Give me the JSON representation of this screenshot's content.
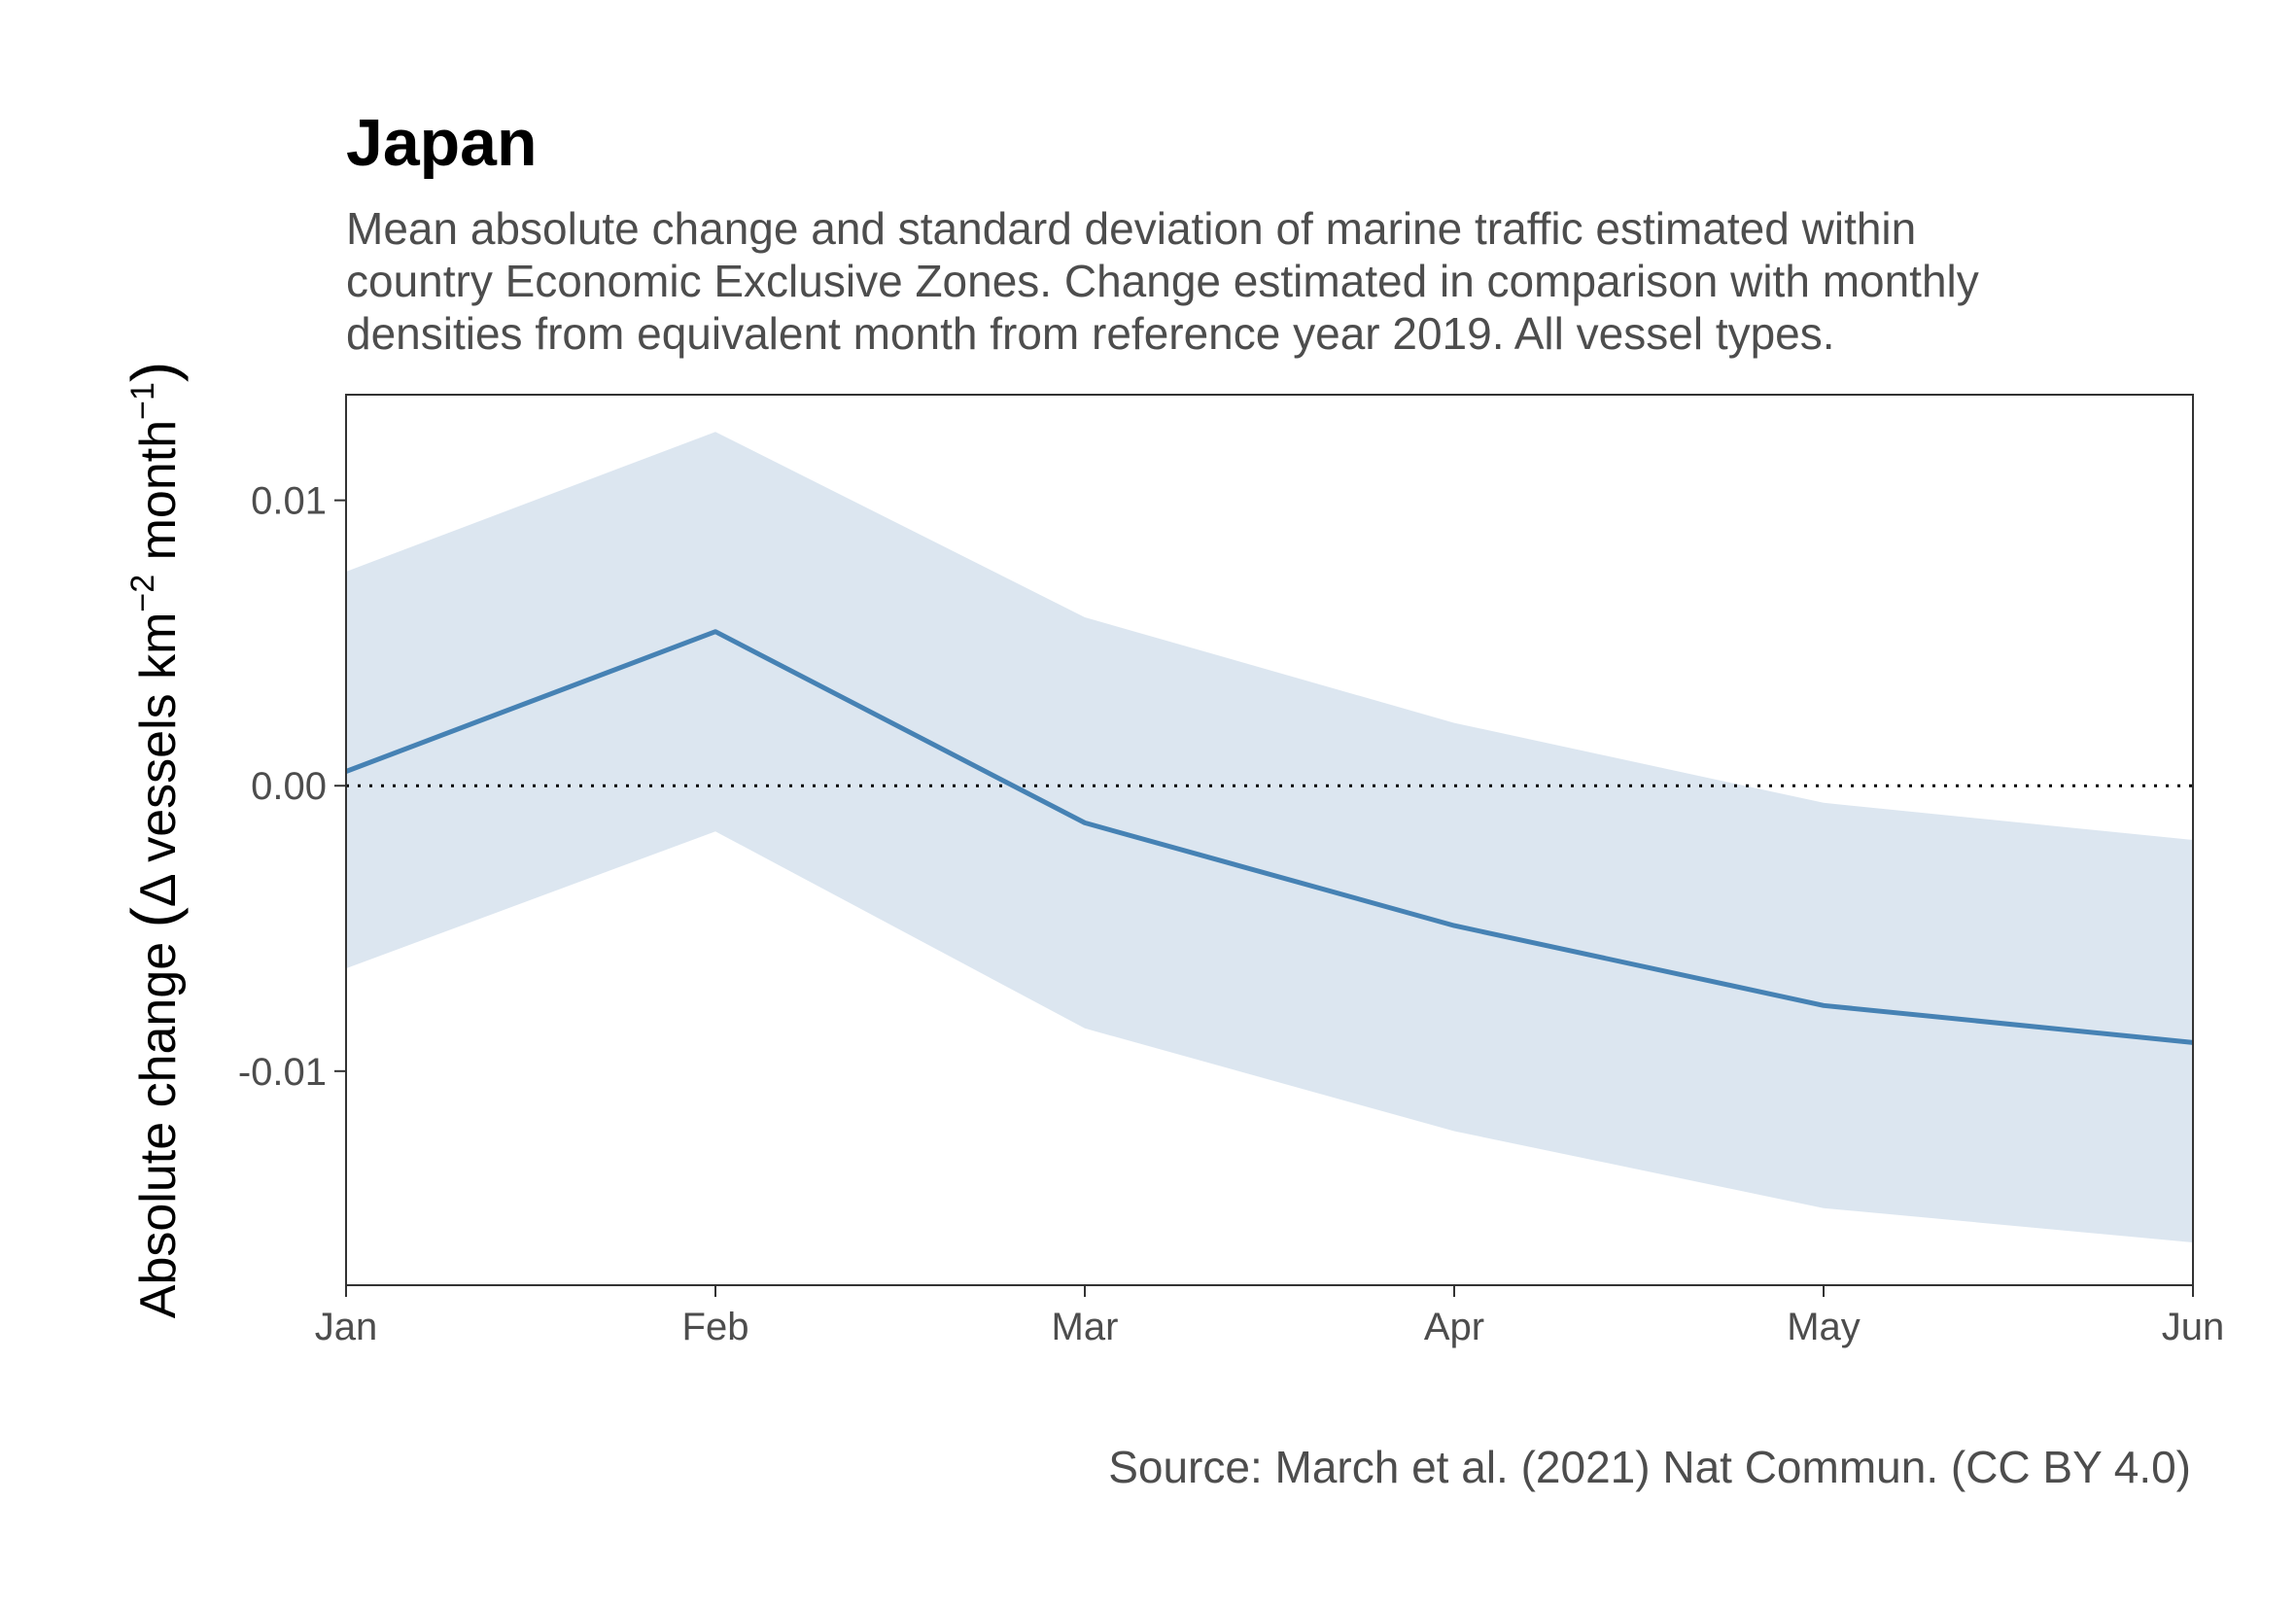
{
  "title": "Japan",
  "subtitle": [
    "Mean absolute change and standard deviation of marine traffic estimated within",
    "country Economic Exclusive Zones. Change estimated in comparison with monthly",
    "densities from equivalent month from reference year 2019. All vessel types."
  ],
  "caption": "Source: March et al. (2021) Nat Commun. (CC BY 4.0)",
  "colors": {
    "line": "#4682b4",
    "ribbon": "#dce6f0",
    "zero_line": "#000000",
    "panel_border": "#333333",
    "text": "#4d4d4d"
  },
  "chart_data": {
    "type": "line",
    "x": [
      "Jan",
      "Feb",
      "Mar",
      "Apr",
      "May",
      "Jun"
    ],
    "series": [
      {
        "mean": [
          0.0005,
          0.0054,
          -0.0013,
          -0.0049,
          -0.0077,
          -0.009
        ],
        "lower": [
          -0.0064,
          -0.0016,
          -0.0085,
          -0.0121,
          -0.0148,
          -0.016
        ],
        "upper": [
          0.0075,
          0.0124,
          0.0059,
          0.0022,
          -0.0006,
          -0.0019
        ]
      }
    ],
    "xlabel": "",
    "ylabel": "Absolute change (Δ vessels km⁻² month⁻¹)",
    "ylabel_parts": {
      "prefix": "Absolute change ",
      "open": "(",
      "delta": "Δ vessels km",
      "sup1": "−2",
      "mid": " month",
      "sup2": "−1",
      "close": ")"
    },
    "yticks": [
      -0.01,
      0.0,
      0.01
    ],
    "ytick_labels": [
      "-0.01",
      "0.00",
      "0.01"
    ],
    "ylim": [
      -0.0175,
      0.0137
    ],
    "reference_line": {
      "y": 0,
      "style": "dotted"
    },
    "grid": false,
    "legend": "none"
  }
}
